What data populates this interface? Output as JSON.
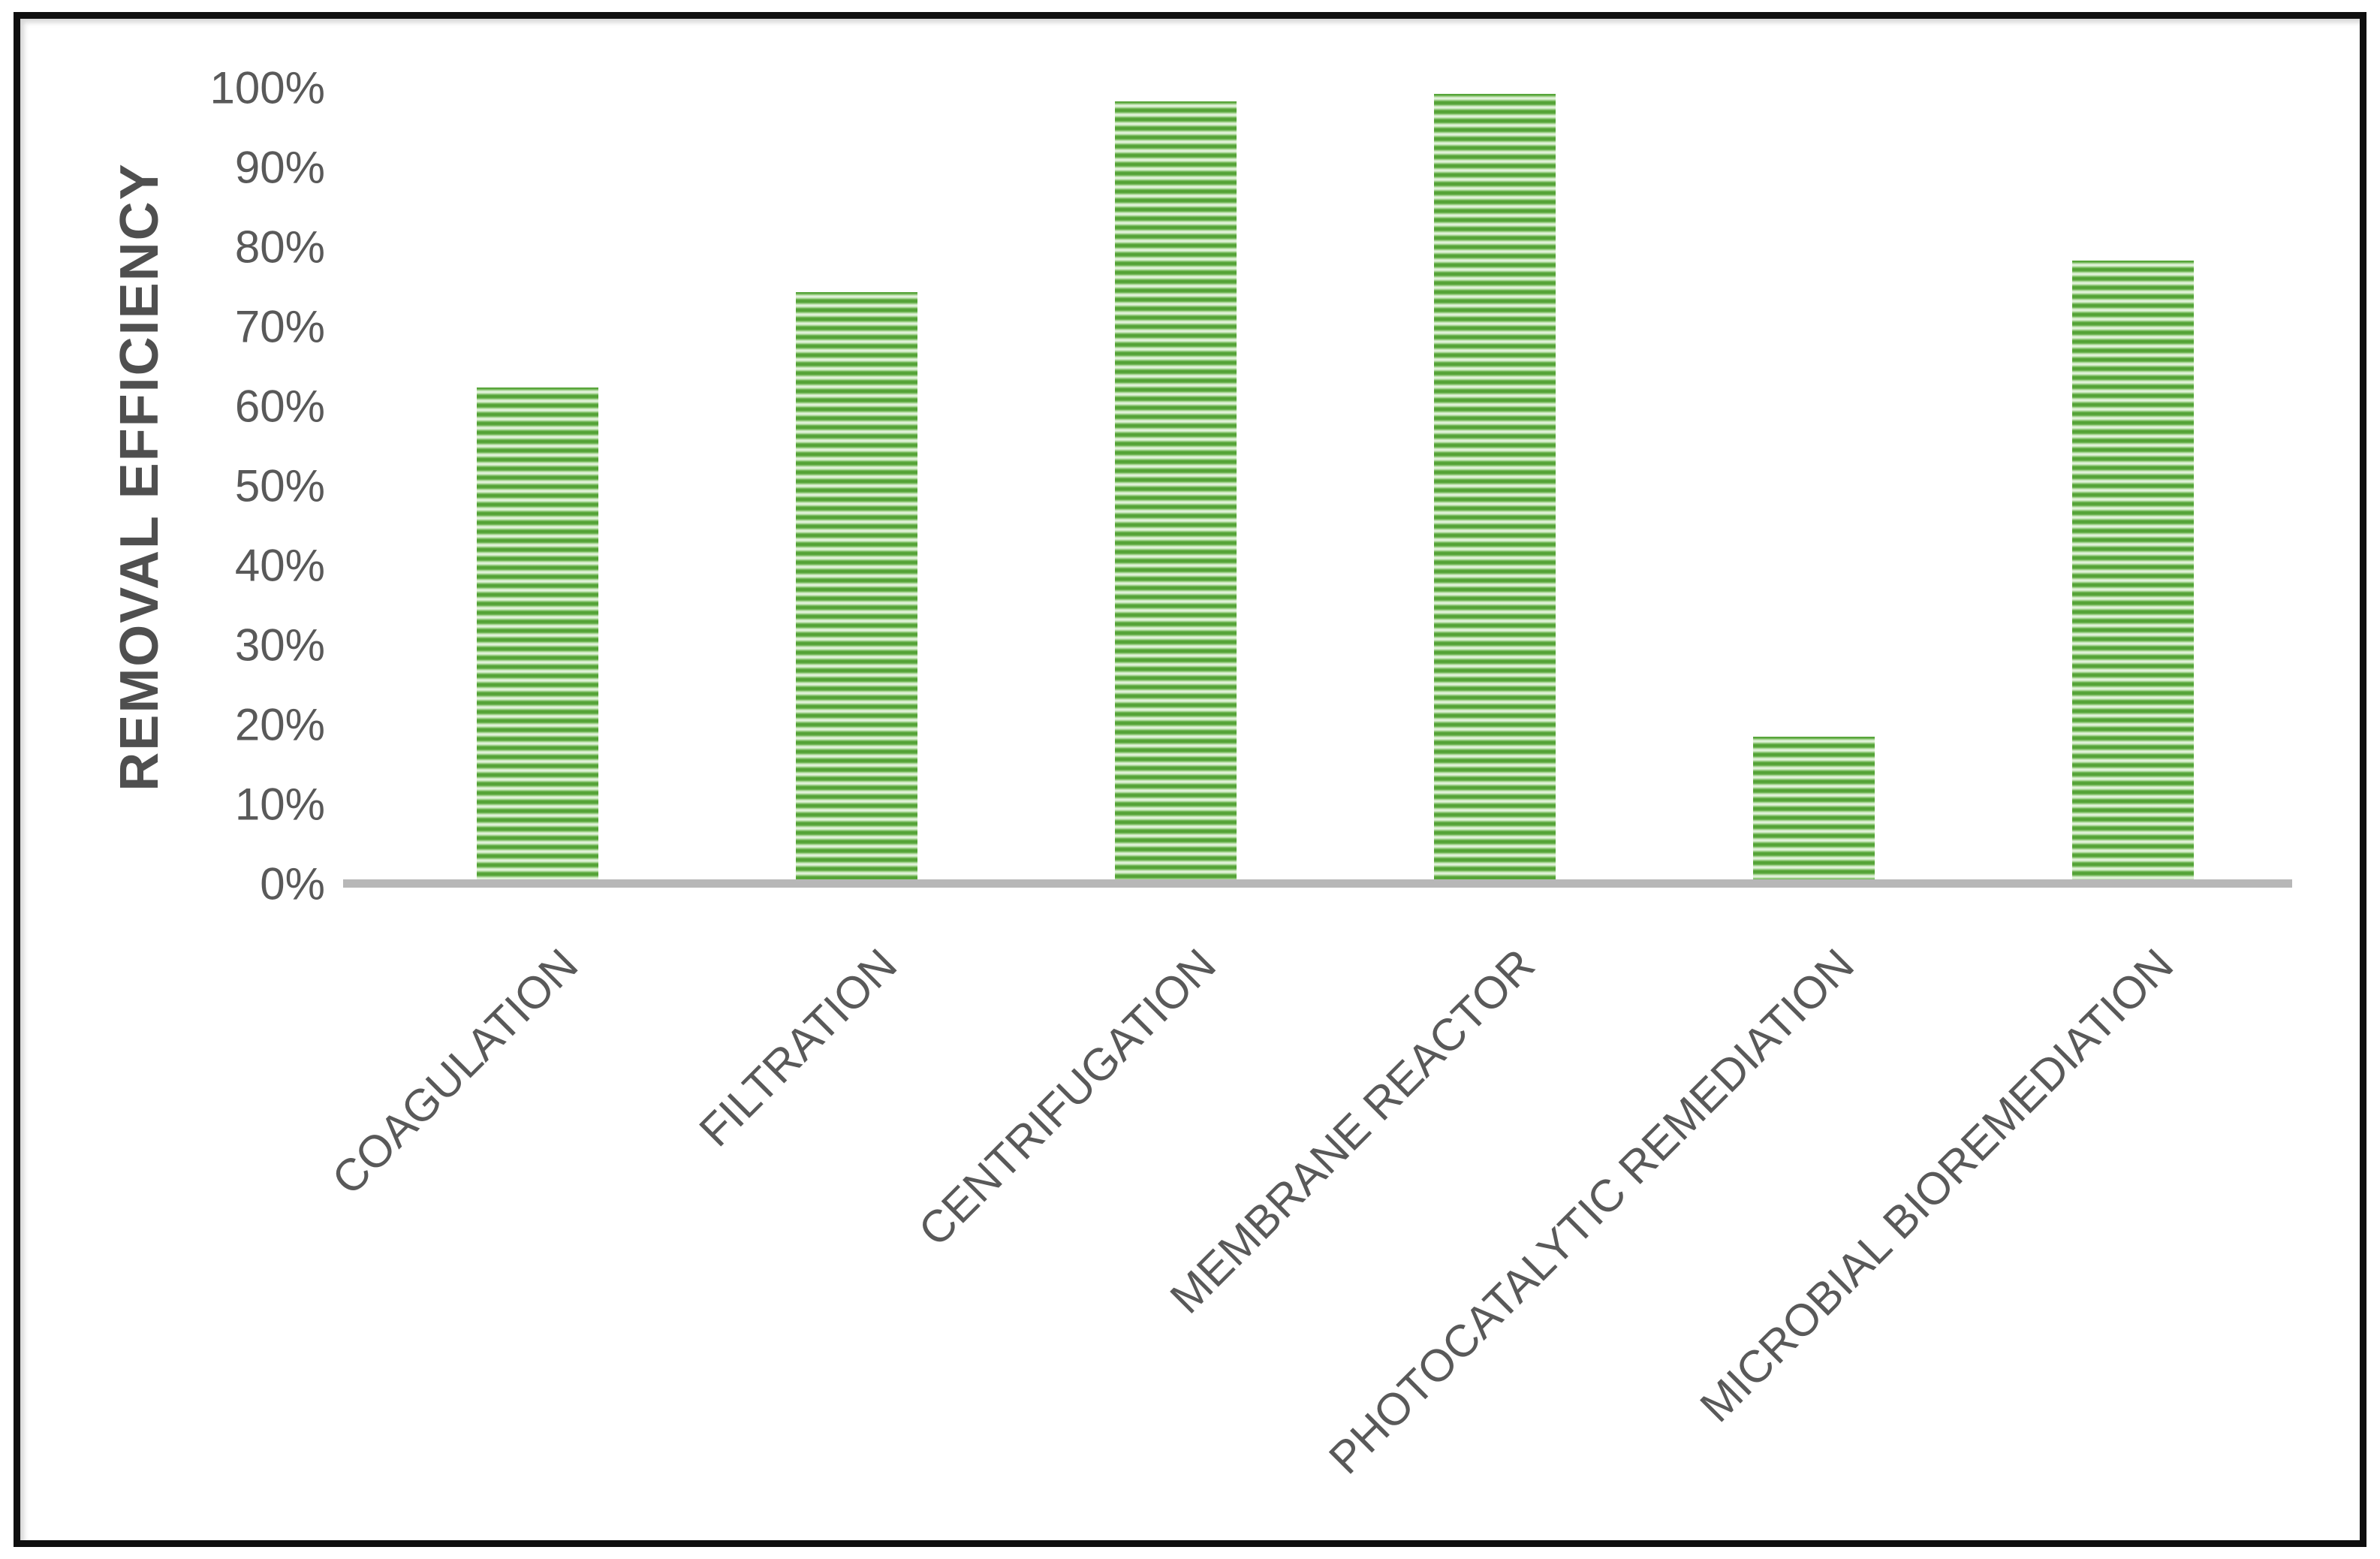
{
  "chart_data": {
    "type": "bar",
    "title": "",
    "xlabel": "",
    "ylabel": "REMOVAL EFFICIENCY",
    "categories": [
      "COAGULATION",
      "FILTRATION",
      "CENTRIFUGATION",
      "MEMBRANE REACTOR",
      "PHOTOCATALYTIC REMEDIATION",
      "MICROBIAL BIOREMEDIATION"
    ],
    "values": [
      62,
      74,
      98,
      99,
      18,
      78
    ],
    "ylim": [
      0,
      100
    ],
    "ytick_step": 10,
    "ytick_labels": [
      "0%",
      "10%",
      "20%",
      "30%",
      "40%",
      "50%",
      "60%",
      "70%",
      "80%",
      "90%",
      "100%"
    ],
    "grid": false,
    "legend": false,
    "bar_pattern": "light-horizontal-stripes",
    "colors": {
      "bar_stripe_green": "#55a437",
      "bar_stripe_light": "#edf7e8",
      "axis_line": "#b7b7b7",
      "tick_text": "#595959",
      "axis_title_text": "#4f4f4f",
      "frame_border": "#0f0f0f",
      "background": "#ffffff"
    }
  }
}
